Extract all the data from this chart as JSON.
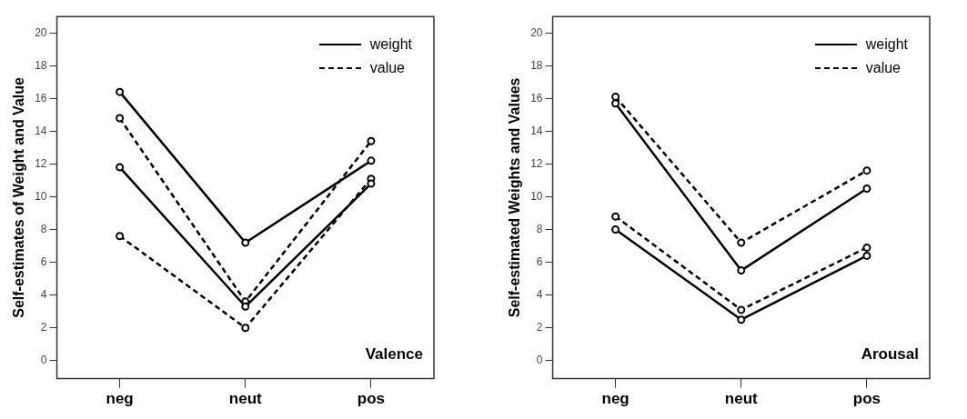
{
  "chart_data": [
    {
      "type": "line",
      "ylabel": "Self-estimates of Weight and Value",
      "categories": [
        "neg",
        "neut",
        "pos"
      ],
      "ylim": [
        -1.1,
        21
      ],
      "yticks": [
        0,
        2,
        4,
        6,
        8,
        10,
        12,
        14,
        16,
        18,
        20
      ],
      "grid": false,
      "legend": "top right",
      "marker": "circle",
      "annotations": [
        "Valence"
      ],
      "series": [
        {
          "name": "weight",
          "color": "#000000",
          "line_style": "solid",
          "values": [
            16.4,
            7.2,
            12.2
          ]
        },
        {
          "color": "#000000",
          "line_style": "solid",
          "values": [
            11.8,
            3.3,
            10.8
          ]
        },
        {
          "name": "value",
          "color": "#000000",
          "line_style": "dashed",
          "values": [
            14.8,
            3.6,
            13.4
          ]
        },
        {
          "color": "#000000",
          "line_style": "dashed",
          "values": [
            7.6,
            2.0,
            11.1
          ]
        }
      ]
    },
    {
      "type": "line",
      "ylabel": "Self-estimated Weights and Values",
      "categories": [
        "neg",
        "neut",
        "pos"
      ],
      "ylim": [
        -1.1,
        21
      ],
      "yticks": [
        0,
        2,
        4,
        6,
        8,
        10,
        12,
        14,
        16,
        18,
        20
      ],
      "grid": false,
      "legend": "top right",
      "marker": "circle",
      "annotations": [
        "Arousal"
      ],
      "series": [
        {
          "name": "weight",
          "color": "#000000",
          "line_style": "solid",
          "values": [
            15.7,
            5.5,
            10.5
          ]
        },
        {
          "color": "#000000",
          "line_style": "solid",
          "values": [
            8.0,
            2.5,
            6.4
          ]
        },
        {
          "name": "value",
          "color": "#000000",
          "line_style": "dashed",
          "values": [
            16.1,
            7.2,
            11.6
          ]
        },
        {
          "color": "#000000",
          "line_style": "dashed",
          "values": [
            8.8,
            3.1,
            6.9
          ]
        }
      ]
    }
  ]
}
